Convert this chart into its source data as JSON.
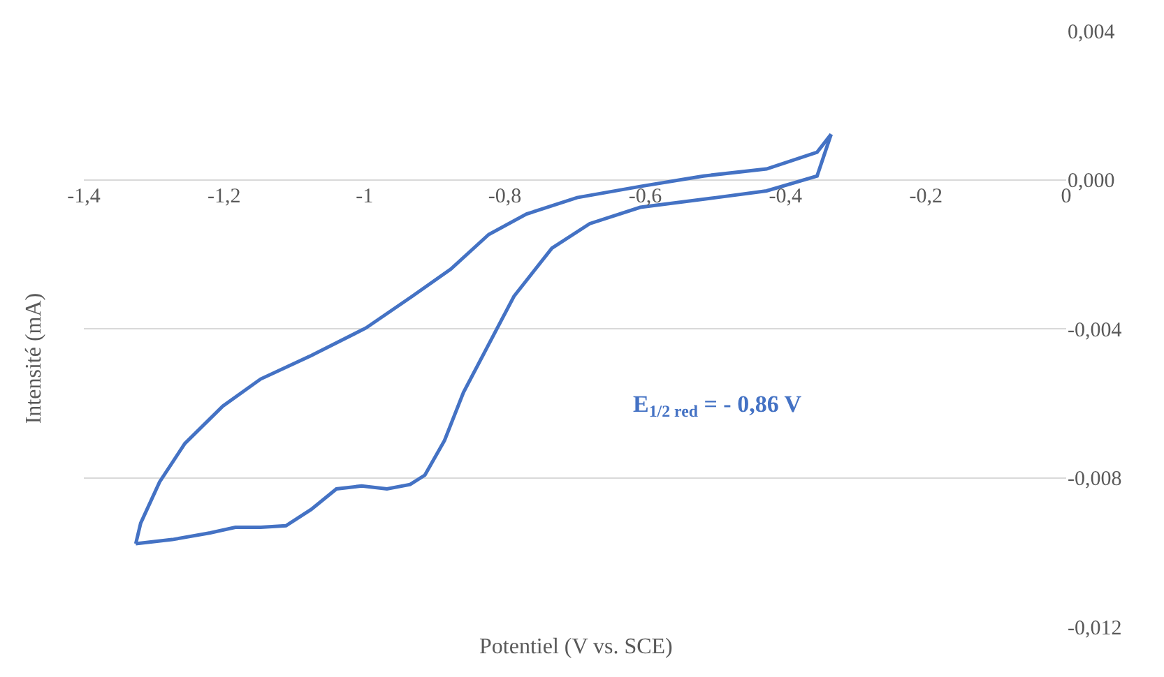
{
  "chart_data": {
    "type": "line",
    "xlabel": "Potentiel (V vs. SCE)",
    "ylabel": "Intensité (mA)",
    "annotations": [
      "E$_{1/2 red}$ = - 0,86 V"
    ],
    "series": [
      {
        "color": "#4472c4",
        "x": [
          -1.326,
          -1.274,
          -1.22,
          -1.184,
          -1.148,
          -1.112,
          -1.076,
          -1.04,
          -1.004,
          -0.968,
          -0.935,
          -0.914,
          -0.886,
          -0.859,
          -0.823,
          -0.787,
          -0.733,
          -0.679,
          -0.607,
          -0.499,
          -0.427,
          -0.355,
          -0.335
        ],
        "values": [
          -0.00977,
          -0.00966,
          -0.00948,
          -0.00933,
          -0.00933,
          -0.00929,
          -0.00885,
          -0.0083,
          -0.00822,
          -0.0083,
          -0.00818,
          -0.00793,
          -0.007,
          -0.00571,
          -0.00442,
          -0.00313,
          -0.00184,
          -0.00118,
          -0.00074,
          -0.00048,
          -0.0003,
          0.0001,
          0.00122
        ]
      },
      {
        "color": "#4472c4",
        "x": [
          -1.326,
          -1.319,
          -1.292,
          -1.256,
          -1.202,
          -1.148,
          -1.076,
          -0.998,
          -0.932,
          -0.877,
          -0.823,
          -0.769,
          -0.697,
          -0.607,
          -0.517,
          -0.427,
          -0.355,
          -0.335
        ],
        "values": [
          -0.00977,
          -0.00922,
          -0.00811,
          -0.00708,
          -0.00608,
          -0.00535,
          -0.00472,
          -0.00398,
          -0.00313,
          -0.0024,
          -0.00147,
          -0.00092,
          -0.00048,
          -0.00018,
          0.0001,
          0.00029,
          0.00074,
          0.00122
        ]
      }
    ],
    "xlim": [
      -1.4,
      0
    ],
    "ylim": [
      -0.012,
      0.004
    ],
    "xticks": [
      {
        "value": -1.4,
        "label": "-1,4"
      },
      {
        "value": -1.2,
        "label": "-1,2"
      },
      {
        "value": -1,
        "label": "-1"
      },
      {
        "value": -0.8,
        "label": "-0,8"
      },
      {
        "value": -0.6,
        "label": "-0,6"
      },
      {
        "value": -0.4,
        "label": "-0,4"
      },
      {
        "value": -0.2,
        "label": "-0,2"
      },
      {
        "value": 0,
        "label": "0"
      }
    ],
    "yticks": [
      {
        "value": 0.004,
        "label": "0,004"
      },
      {
        "value": 0,
        "label": "0,000"
      },
      {
        "value": -0.004,
        "label": "-0,004"
      },
      {
        "value": -0.008,
        "label": "-0,008"
      },
      {
        "value": -0.012,
        "label": "-0,012"
      }
    ],
    "grid": "y",
    "marker": "none",
    "line_style": "solid"
  }
}
